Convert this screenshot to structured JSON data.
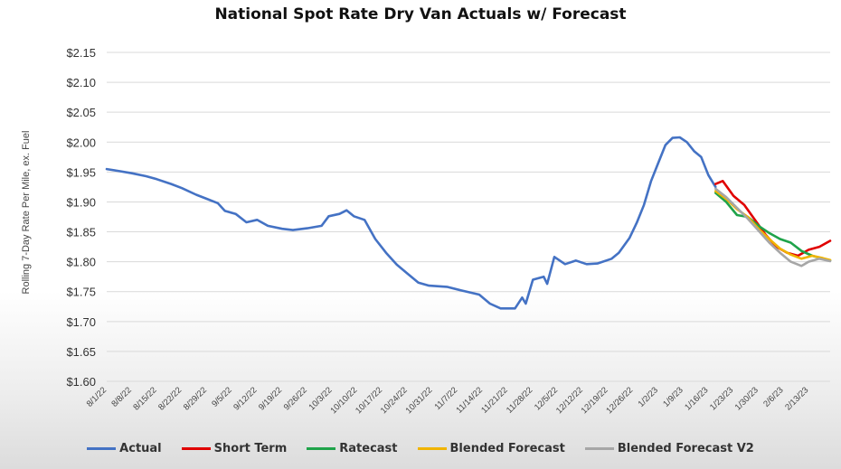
{
  "chart_data": {
    "type": "line",
    "title": "National Spot Rate Dry Van Actuals w/ Forecast",
    "ylabel": "Rolling 7-Day Rate Per Mile, ex. Fuel",
    "xlabel": "",
    "ylim": [
      1.6,
      2.15
    ],
    "yticks": [
      "$2.15",
      "$2.10",
      "$2.05",
      "$2.00",
      "$1.95",
      "$1.90",
      "$1.85",
      "$1.80",
      "$1.75",
      "$1.70",
      "$1.65",
      "$1.60"
    ],
    "ytick_values": [
      2.15,
      2.1,
      2.05,
      2.0,
      1.95,
      1.9,
      1.85,
      1.8,
      1.75,
      1.7,
      1.65,
      1.6
    ],
    "xlim": [
      "8/1/22",
      "2/19/23"
    ],
    "xticks": [
      "8/1/22",
      "8/8/22",
      "8/15/22",
      "8/22/22",
      "8/29/22",
      "9/5/22",
      "9/12/22",
      "9/19/22",
      "9/26/22",
      "10/3/22",
      "10/10/22",
      "10/17/22",
      "10/24/22",
      "10/31/22",
      "11/7/22",
      "11/14/22",
      "11/21/22",
      "11/28/22",
      "12/5/22",
      "12/12/22",
      "12/19/22",
      "12/26/22",
      "1/2/23",
      "1/9/23",
      "1/16/23",
      "1/23/23",
      "1/30/23",
      "2/6/23",
      "2/13/23"
    ],
    "grid": true,
    "legend_position": "bottom",
    "series": [
      {
        "name": "Actual",
        "color": "#4472C4",
        "points": [
          [
            "8/1/22",
            1.955
          ],
          [
            "8/4/22",
            1.952
          ],
          [
            "8/8/22",
            1.948
          ],
          [
            "8/12/22",
            1.943
          ],
          [
            "8/15/22",
            1.938
          ],
          [
            "8/19/22",
            1.93
          ],
          [
            "8/22/22",
            1.923
          ],
          [
            "8/26/22",
            1.912
          ],
          [
            "8/29/22",
            1.905
          ],
          [
            "9/1/22",
            1.898
          ],
          [
            "9/3/22",
            1.885
          ],
          [
            "9/6/22",
            1.88
          ],
          [
            "9/9/22",
            1.866
          ],
          [
            "9/12/22",
            1.87
          ],
          [
            "9/15/22",
            1.86
          ],
          [
            "9/19/22",
            1.855
          ],
          [
            "9/22/22",
            1.853
          ],
          [
            "9/26/22",
            1.856
          ],
          [
            "9/30/22",
            1.86
          ],
          [
            "10/2/22",
            1.876
          ],
          [
            "10/5/22",
            1.88
          ],
          [
            "10/7/22",
            1.886
          ],
          [
            "10/9/22",
            1.876
          ],
          [
            "10/12/22",
            1.87
          ],
          [
            "10/15/22",
            1.838
          ],
          [
            "10/18/22",
            1.815
          ],
          [
            "10/21/22",
            1.795
          ],
          [
            "10/24/22",
            1.78
          ],
          [
            "10/27/22",
            1.765
          ],
          [
            "10/30/22",
            1.76
          ],
          [
            "11/4/22",
            1.758
          ],
          [
            "11/8/22",
            1.752
          ],
          [
            "11/13/22",
            1.745
          ],
          [
            "11/16/22",
            1.73
          ],
          [
            "11/19/22",
            1.722
          ],
          [
            "11/23/22",
            1.722
          ],
          [
            "11/25/22",
            1.74
          ],
          [
            "11/26/22",
            1.73
          ],
          [
            "11/28/22",
            1.77
          ],
          [
            "12/1/22",
            1.775
          ],
          [
            "12/2/22",
            1.763
          ],
          [
            "12/4/22",
            1.808
          ],
          [
            "12/7/22",
            1.796
          ],
          [
            "12/10/22",
            1.802
          ],
          [
            "12/13/22",
            1.796
          ],
          [
            "12/16/22",
            1.797
          ],
          [
            "12/20/22",
            1.805
          ],
          [
            "12/22/22",
            1.815
          ],
          [
            "12/25/22",
            1.84
          ],
          [
            "12/27/22",
            1.865
          ],
          [
            "12/29/22",
            1.895
          ],
          [
            "12/31/22",
            1.935
          ],
          [
            "1/2/23",
            1.965
          ],
          [
            "1/4/23",
            1.995
          ],
          [
            "1/6/23",
            2.007
          ],
          [
            "1/8/23",
            2.008
          ],
          [
            "1/10/23",
            2.0
          ],
          [
            "1/12/23",
            1.985
          ],
          [
            "1/14/23",
            1.975
          ],
          [
            "1/16/23",
            1.945
          ],
          [
            "1/18/23",
            1.925
          ]
        ]
      },
      {
        "name": "Short Term",
        "color": "#E00000",
        "points": [
          [
            "1/18/23",
            1.93
          ],
          [
            "1/20/23",
            1.935
          ],
          [
            "1/23/23",
            1.91
          ],
          [
            "1/26/23",
            1.895
          ],
          [
            "1/29/23",
            1.87
          ],
          [
            "2/1/23",
            1.845
          ],
          [
            "2/4/23",
            1.825
          ],
          [
            "2/7/23",
            1.815
          ],
          [
            "2/10/23",
            1.81
          ],
          [
            "2/13/23",
            1.82
          ],
          [
            "2/16/23",
            1.825
          ],
          [
            "2/19/23",
            1.835
          ]
        ]
      },
      {
        "name": "Ratecast",
        "color": "#1FA34A",
        "points": [
          [
            "1/18/23",
            1.915
          ],
          [
            "1/21/23",
            1.9
          ],
          [
            "1/24/23",
            1.878
          ],
          [
            "1/27/23",
            1.875
          ],
          [
            "1/30/23",
            1.86
          ],
          [
            "2/2/23",
            1.848
          ],
          [
            "2/5/23",
            1.838
          ],
          [
            "2/8/23",
            1.832
          ],
          [
            "2/11/23",
            1.818
          ],
          [
            "2/14/23",
            1.81
          ],
          [
            "2/17/23",
            1.805
          ],
          [
            "2/19/23",
            1.802
          ]
        ]
      },
      {
        "name": "Blended Forecast",
        "color": "#F0B400",
        "points": [
          [
            "1/18/23",
            1.918
          ],
          [
            "1/21/23",
            1.905
          ],
          [
            "1/24/23",
            1.888
          ],
          [
            "1/27/23",
            1.875
          ],
          [
            "1/30/23",
            1.855
          ],
          [
            "2/2/23",
            1.838
          ],
          [
            "2/5/23",
            1.822
          ],
          [
            "2/8/23",
            1.812
          ],
          [
            "2/11/23",
            1.805
          ],
          [
            "2/14/23",
            1.81
          ],
          [
            "2/17/23",
            1.806
          ],
          [
            "2/19/23",
            1.803
          ]
        ]
      },
      {
        "name": "Blended Forecast V2",
        "color": "#A6A6A6",
        "points": [
          [
            "1/18/23",
            1.922
          ],
          [
            "1/21/23",
            1.908
          ],
          [
            "1/24/23",
            1.89
          ],
          [
            "1/27/23",
            1.872
          ],
          [
            "1/30/23",
            1.852
          ],
          [
            "2/2/23",
            1.832
          ],
          [
            "2/5/23",
            1.815
          ],
          [
            "2/8/23",
            1.8
          ],
          [
            "2/11/23",
            1.793
          ],
          [
            "2/13/23",
            1.8
          ],
          [
            "2/16/23",
            1.805
          ],
          [
            "2/19/23",
            1.801
          ]
        ]
      }
    ]
  }
}
